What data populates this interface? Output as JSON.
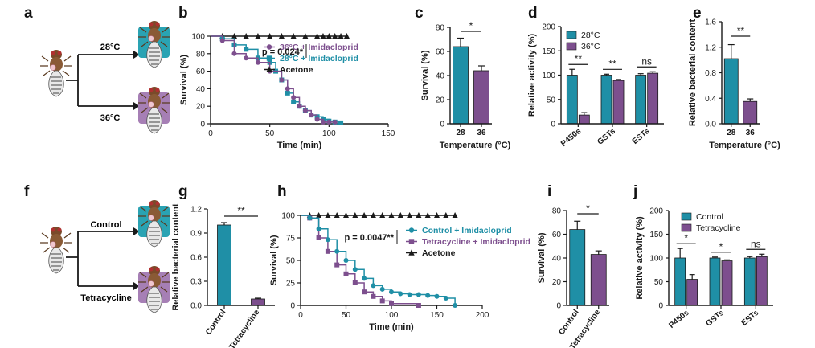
{
  "colors": {
    "teal": "#1f8fa6",
    "purple": "#7d4f8e",
    "black": "#1a1a1a",
    "tealBox": "#2aa3b3",
    "purpleBox": "#a67fb5"
  },
  "panel_labels": [
    "a",
    "b",
    "c",
    "d",
    "e",
    "f",
    "g",
    "h",
    "i",
    "j"
  ],
  "schematic_a": {
    "top": "28°C",
    "bottom": "36°C"
  },
  "schematic_f": {
    "top": "Control",
    "bottom": "Tetracycline"
  },
  "chart_data": [
    {
      "id": "b",
      "type": "line",
      "xlabel": "Time (min)",
      "ylabel": "Survival (%)",
      "xlim": [
        0,
        150
      ],
      "ylim": [
        0,
        100
      ],
      "xticks": [
        "0",
        "50",
        "100",
        "150"
      ],
      "yticks": [
        "0",
        "20",
        "40",
        "60",
        "80",
        "100"
      ],
      "pvalue": "p = 0.024*",
      "series": [
        {
          "name": "36°C + Imidacloprid",
          "color": "#7d4f8e",
          "marker": "circle",
          "x": [
            10,
            20,
            30,
            40,
            50,
            60,
            65,
            70,
            75,
            80,
            85,
            90,
            95,
            100,
            105
          ],
          "y": [
            95,
            80,
            75,
            70,
            60,
            50,
            40,
            30,
            20,
            15,
            10,
            5,
            2,
            2,
            2
          ]
        },
        {
          "name": "28°C + Imidacloprid",
          "color": "#1f8fa6",
          "marker": "square",
          "x": [
            10,
            20,
            30,
            40,
            50,
            55,
            60,
            65,
            70,
            75,
            80,
            85,
            90,
            95,
            100,
            105,
            110
          ],
          "y": [
            97,
            90,
            85,
            75,
            70,
            60,
            50,
            35,
            25,
            20,
            15,
            10,
            8,
            5,
            3,
            2,
            1
          ]
        },
        {
          "name": "Acetone",
          "color": "#1a1a1a",
          "marker": "triangle",
          "x": [
            10,
            20,
            30,
            40,
            50,
            60,
            70,
            80,
            90,
            95,
            100,
            105,
            110,
            115
          ],
          "y": [
            100,
            100,
            100,
            100,
            100,
            100,
            100,
            100,
            100,
            100,
            100,
            100,
            100,
            100
          ]
        }
      ]
    },
    {
      "id": "c",
      "type": "bar",
      "xlabel": "Temperature (°C)",
      "ylabel": "Survival (%)",
      "ylim": [
        0,
        80
      ],
      "yticks": [
        "0",
        "20",
        "40",
        "60",
        "80"
      ],
      "categories": [
        "28",
        "36"
      ],
      "values": [
        64,
        44
      ],
      "errors": [
        7,
        4
      ],
      "colors": [
        "#1f8fa6",
        "#7d4f8e"
      ],
      "sig": [
        {
          "text": "*",
          "pair": [
            0,
            1
          ]
        }
      ]
    },
    {
      "id": "d",
      "type": "bar",
      "ylabel": "Relative activity (%)",
      "ylim": [
        0,
        200
      ],
      "yticks": [
        "0",
        "50",
        "100",
        "150",
        "200"
      ],
      "categories": [
        "P450s",
        "GSTs",
        "ESTs"
      ],
      "series": [
        {
          "name": "28°C",
          "color": "#1f8fa6",
          "values": [
            100,
            100,
            100
          ],
          "errors": [
            12,
            2,
            3
          ]
        },
        {
          "name": "36°C",
          "color": "#7d4f8e",
          "values": [
            18,
            89,
            104
          ],
          "errors": [
            5,
            2,
            3
          ]
        }
      ],
      "sig": [
        "**",
        "**",
        "ns"
      ]
    },
    {
      "id": "e",
      "type": "bar",
      "xlabel": "Temperature (°C)",
      "ylabel": "Relative bacterial content",
      "ylim": [
        0,
        1.6
      ],
      "yticks": [
        "0.0",
        "0.4",
        "0.8",
        "1.2",
        "1.6"
      ],
      "categories": [
        "28",
        "36"
      ],
      "values": [
        1.02,
        0.35
      ],
      "errors": [
        0.22,
        0.04
      ],
      "colors": [
        "#1f8fa6",
        "#7d4f8e"
      ],
      "sig": [
        {
          "text": "**",
          "pair": [
            0,
            1
          ]
        }
      ]
    },
    {
      "id": "g",
      "type": "bar",
      "ylabel": "Relative bacterial content",
      "ylim": [
        0,
        1.2
      ],
      "yticks": [
        "0.0",
        "0.3",
        "0.6",
        "0.9",
        "1.2"
      ],
      "categories": [
        "Control",
        "Tetracycline"
      ],
      "values": [
        1.0,
        0.08
      ],
      "errors": [
        0.03,
        0.01
      ],
      "colors": [
        "#1f8fa6",
        "#7d4f8e"
      ],
      "sig": [
        {
          "text": "**",
          "pair": [
            0,
            1
          ]
        }
      ]
    },
    {
      "id": "h",
      "type": "line",
      "xlabel": "Time (min)",
      "ylabel": "Survival (%)",
      "xlim": [
        0,
        200
      ],
      "ylim": [
        0,
        100
      ],
      "xticks": [
        "0",
        "50",
        "100",
        "150",
        "200"
      ],
      "yticks": [
        "0",
        "25",
        "50",
        "75",
        "100"
      ],
      "pvalue": "p = 0.0047**",
      "series": [
        {
          "name": "Control + Imidacloprid",
          "color": "#1f8fa6",
          "marker": "circle",
          "x": [
            10,
            20,
            30,
            40,
            50,
            60,
            70,
            80,
            90,
            100,
            110,
            120,
            130,
            140,
            150,
            160,
            170
          ],
          "y": [
            97,
            85,
            73,
            60,
            50,
            40,
            30,
            22,
            18,
            15,
            13,
            12,
            12,
            11,
            10,
            8,
            0
          ]
        },
        {
          "name": "Tetracycline + Imidacloprid",
          "color": "#7d4f8e",
          "marker": "square",
          "x": [
            10,
            20,
            30,
            40,
            50,
            60,
            70,
            80,
            90,
            100,
            130
          ],
          "y": [
            97,
            75,
            60,
            45,
            35,
            25,
            15,
            10,
            5,
            2,
            0
          ]
        },
        {
          "name": "Acetone",
          "color": "#1a1a1a",
          "marker": "triangle",
          "x": [
            10,
            20,
            30,
            40,
            50,
            60,
            70,
            80,
            90,
            100,
            110,
            120,
            130,
            140,
            150,
            160,
            170
          ],
          "y": [
            100,
            100,
            100,
            100,
            100,
            100,
            100,
            100,
            100,
            100,
            100,
            100,
            100,
            100,
            100,
            100,
            100
          ]
        }
      ]
    },
    {
      "id": "i",
      "type": "bar",
      "ylabel": "Survival (%)",
      "ylim": [
        0,
        80
      ],
      "yticks": [
        "0",
        "20",
        "40",
        "60",
        "80"
      ],
      "categories": [
        "Control",
        "Tetracycline"
      ],
      "values": [
        64,
        43
      ],
      "errors": [
        7,
        3
      ],
      "colors": [
        "#1f8fa6",
        "#7d4f8e"
      ],
      "sig": [
        {
          "text": "*",
          "pair": [
            0,
            1
          ]
        }
      ]
    },
    {
      "id": "j",
      "type": "bar",
      "ylabel": "Relative activity (%)",
      "ylim": [
        0,
        200
      ],
      "yticks": [
        "0",
        "50",
        "100",
        "150",
        "200"
      ],
      "categories": [
        "P450s",
        "GSTs",
        "ESTs"
      ],
      "series": [
        {
          "name": "Control",
          "color": "#1f8fa6",
          "values": [
            100,
            100,
            100
          ],
          "errors": [
            20,
            2,
            3
          ]
        },
        {
          "name": "Tetracycline",
          "color": "#7d4f8e",
          "values": [
            55,
            94,
            103
          ],
          "errors": [
            10,
            2,
            5
          ]
        }
      ],
      "sig": [
        "*",
        "*",
        "ns"
      ]
    }
  ]
}
